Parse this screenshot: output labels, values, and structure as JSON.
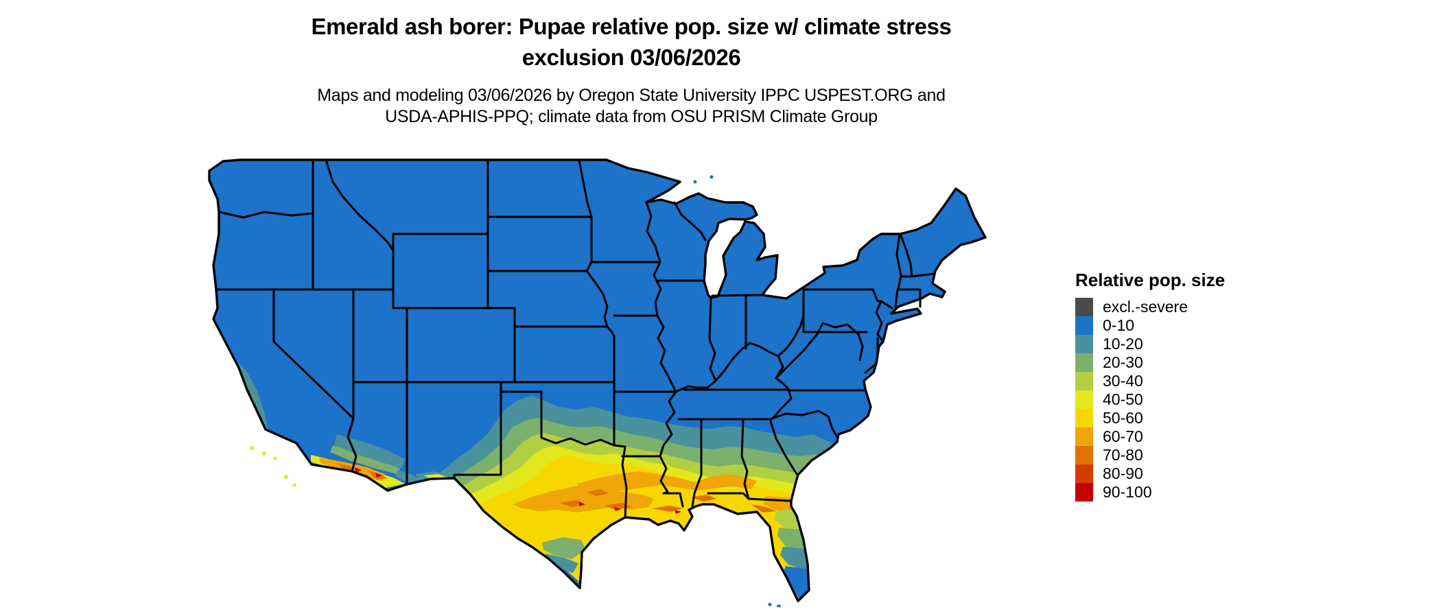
{
  "title": {
    "line1": "Emerald ash borer: Pupae relative pop. size w/ climate stress",
    "line2": "exclusion 03/06/2026"
  },
  "subtitle": {
    "line1": "Maps and modeling 03/06/2026 by Oregon State University IPPC USPEST.ORG and",
    "line2": "USDA-APHIS-PPQ; climate data from OSU PRISM Climate Group"
  },
  "legend": {
    "title": "Relative pop. size",
    "items": [
      {
        "label": "excl.-severe",
        "color": "#4b4b4b",
        "key": "severe"
      },
      {
        "label": "0-10",
        "color": "#1d72c9",
        "key": "b0"
      },
      {
        "label": "10-20",
        "color": "#4a919e",
        "key": "b10"
      },
      {
        "label": "20-30",
        "color": "#7cb06d",
        "key": "b20"
      },
      {
        "label": "30-40",
        "color": "#b2cf44",
        "key": "b30"
      },
      {
        "label": "40-50",
        "color": "#e3e81c",
        "key": "b40"
      },
      {
        "label": "50-60",
        "color": "#f6d800",
        "key": "b50"
      },
      {
        "label": "60-70",
        "color": "#efa606",
        "key": "b60"
      },
      {
        "label": "70-80",
        "color": "#e07200",
        "key": "b70"
      },
      {
        "label": "80-90",
        "color": "#d63c00",
        "key": "b80"
      },
      {
        "label": "90-100",
        "color": "#c60000",
        "key": "b90"
      }
    ]
  },
  "map": {
    "region_label": "Contiguous United States",
    "background_color": "#ffffff",
    "border_color": "#000000"
  }
}
